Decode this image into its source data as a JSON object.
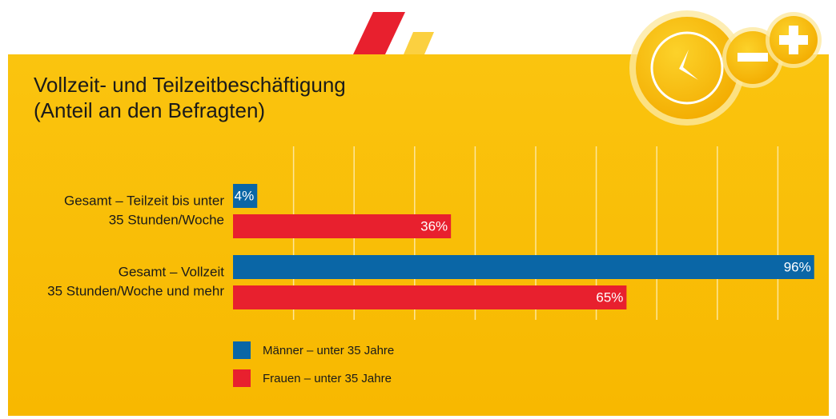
{
  "chart_data": {
    "type": "bar",
    "orientation": "horizontal",
    "title": "Vollzeit- und Teilzeitbeschäftigung",
    "subtitle": "(Anteil an den Befragten)",
    "categories": [
      [
        "Gesamt – Teilzeit bis unter",
        "35 Stunden/Woche"
      ],
      [
        "Gesamt – Vollzeit",
        "35 Stunden/Woche und mehr"
      ]
    ],
    "series": [
      {
        "name": "Männer – unter 35 Jahre",
        "color": "#0a66a6",
        "values": [
          4,
          96
        ],
        "value_labels": [
          "4%",
          "96%"
        ]
      },
      {
        "name": "Frauen – unter 35 Jahre",
        "color": "#e8202e",
        "values": [
          36,
          65
        ],
        "value_labels": [
          "36%",
          "65%"
        ]
      }
    ],
    "xlim": [
      0,
      100
    ],
    "xticks": [
      10,
      20,
      30,
      40,
      50,
      60,
      70,
      80,
      90
    ],
    "grid": true
  }
}
